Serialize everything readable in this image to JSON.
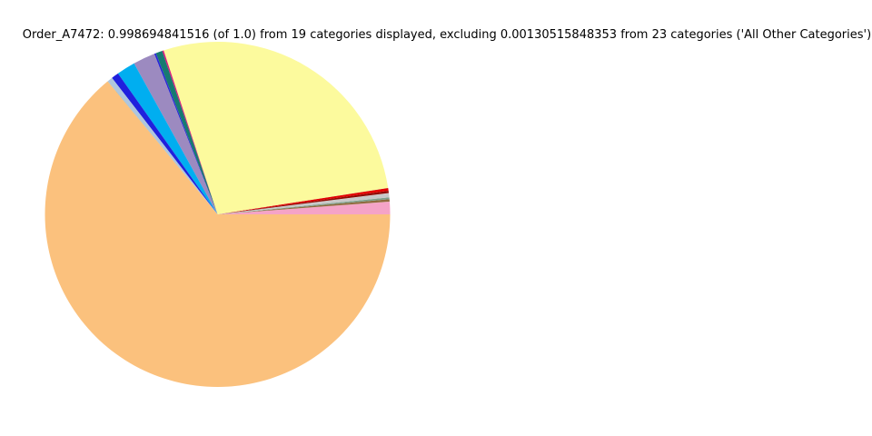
{
  "header": {
    "title": "Order_A7472: 0.998694841516 (of 1.0) from 19 categories displayed, excluding 0.00130515848353 from 23 categories ('All Other Categories')"
  },
  "chart_data": {
    "type": "pie",
    "title": "Order_A7472: 0.998694841516 (of 1.0) from 19 categories displayed, excluding 0.00130515848353 from 23 categories ('All Other Categories')",
    "displayed_fraction_total": "0.998694841516",
    "displayed_fraction_of": "1.0",
    "excluded_fraction": "0.00130515848353",
    "categories_displayed": 19,
    "categories_total": 23,
    "excluded_group_label": "All Other Categories",
    "legend_position": "none",
    "start_angle_deg": 0,
    "direction": "counterclockwise",
    "background_color": "#ffffff",
    "slices": [
      {
        "color": "#f5a3c7",
        "fraction": 0.0117
      },
      {
        "color": "#c9a26b",
        "fraction": 0.0001
      },
      {
        "color": "#8f6b3f",
        "fraction": 0.0022
      },
      {
        "color": "#7fa08c",
        "fraction": 0.0017
      },
      {
        "color": "#c8c8c8",
        "fraction": 0.0039
      },
      {
        "color": "#f0f0f0",
        "fraction": 0.0001
      },
      {
        "color": "#8e0b04",
        "fraction": 0.0022
      },
      {
        "color": "#e50000",
        "fraction": 0.0025
      },
      {
        "color": "#666666",
        "fraction": 0.0001
      },
      {
        "color": "#fcfa9d",
        "fraction": 0.2761
      },
      {
        "color": "#d81b7e",
        "fraction": 0.0014
      },
      {
        "color": "#177a70",
        "fraction": 0.0061
      },
      {
        "color": "#2a2ad4",
        "fraction": 0.0017
      },
      {
        "color": "#9c8ac0",
        "fraction": 0.0206
      },
      {
        "color": "#00aef0",
        "fraction": 0.0175
      },
      {
        "color": "#2020dd",
        "fraction": 0.0069
      },
      {
        "color": "#aec6de",
        "fraction": 0.005
      },
      {
        "color": "#2e8b57",
        "fraction": 0.0001
      },
      {
        "color": "#fbc17d",
        "fraction": 0.6401
      }
    ]
  }
}
